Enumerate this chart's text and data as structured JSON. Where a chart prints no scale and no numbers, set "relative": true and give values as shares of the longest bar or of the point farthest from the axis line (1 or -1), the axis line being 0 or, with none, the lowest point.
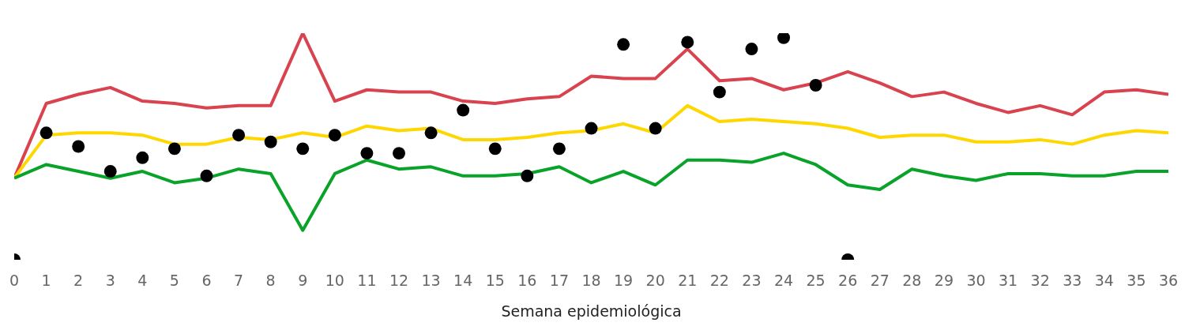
{
  "chart_data": {
    "type": "line",
    "relative": true,
    "xlabel": "Semana epidemiológica",
    "xlim": [
      0,
      36
    ],
    "xticks": [
      0,
      1,
      2,
      3,
      4,
      5,
      6,
      7,
      8,
      9,
      10,
      11,
      12,
      13,
      14,
      15,
      16,
      17,
      18,
      19,
      20,
      21,
      22,
      23,
      24,
      25,
      26,
      27,
      28,
      29,
      30,
      31,
      32,
      33,
      34,
      35,
      36
    ],
    "x": [
      0,
      1,
      2,
      3,
      4,
      5,
      6,
      7,
      8,
      9,
      10,
      11,
      12,
      13,
      14,
      15,
      16,
      17,
      18,
      19,
      20,
      21,
      22,
      23,
      24,
      25,
      26,
      27,
      28,
      29,
      30,
      31,
      32,
      33,
      34,
      35,
      36
    ],
    "grid": false,
    "marker": "none",
    "line_style": "solid",
    "series": [
      {
        "color": "#d9434f",
        "values": [
          0.36,
          0.69,
          0.73,
          0.76,
          0.7,
          0.69,
          0.67,
          0.68,
          0.68,
          1.0,
          0.7,
          0.75,
          0.74,
          0.74,
          0.7,
          0.69,
          0.71,
          0.72,
          0.81,
          0.8,
          0.8,
          0.93,
          0.79,
          0.8,
          0.75,
          0.78,
          0.83,
          0.78,
          0.72,
          0.74,
          0.69,
          0.65,
          0.68,
          0.64,
          0.74,
          0.75,
          0.73
        ]
      },
      {
        "color": "#ffd700",
        "values": [
          0.36,
          0.55,
          0.56,
          0.56,
          0.55,
          0.51,
          0.51,
          0.54,
          0.53,
          0.56,
          0.54,
          0.59,
          0.57,
          0.58,
          0.53,
          0.53,
          0.54,
          0.56,
          0.57,
          0.6,
          0.56,
          0.68,
          0.61,
          0.62,
          0.61,
          0.6,
          0.58,
          0.54,
          0.55,
          0.55,
          0.52,
          0.52,
          0.53,
          0.51,
          0.55,
          0.57,
          0.56
        ]
      },
      {
        "color": "#0aa32a",
        "values": [
          0.36,
          0.42,
          0.39,
          0.36,
          0.39,
          0.34,
          0.36,
          0.4,
          0.38,
          0.13,
          0.38,
          0.44,
          0.4,
          0.41,
          0.37,
          0.37,
          0.38,
          0.41,
          0.34,
          0.39,
          0.33,
          0.44,
          0.44,
          0.43,
          0.47,
          0.42,
          0.33,
          0.31,
          0.4,
          0.37,
          0.35,
          0.38,
          0.38,
          0.37,
          0.37,
          0.39,
          0.39
        ]
      },
      {
        "type": "scatter",
        "marker": "circle",
        "color": "#000000",
        "values": [
          0,
          0.56,
          0.5,
          0.39,
          0.45,
          0.49,
          0.37,
          0.55,
          0.52,
          0.49,
          0.55,
          0.47,
          0.47,
          0.56,
          0.66,
          0.49,
          0.37,
          0.49,
          0.58,
          0.95,
          0.58,
          0.96,
          0.74,
          0.93,
          0.98,
          0.77,
          0,
          null,
          null,
          null,
          null,
          null,
          null,
          null,
          null,
          null,
          null
        ]
      }
    ]
  }
}
